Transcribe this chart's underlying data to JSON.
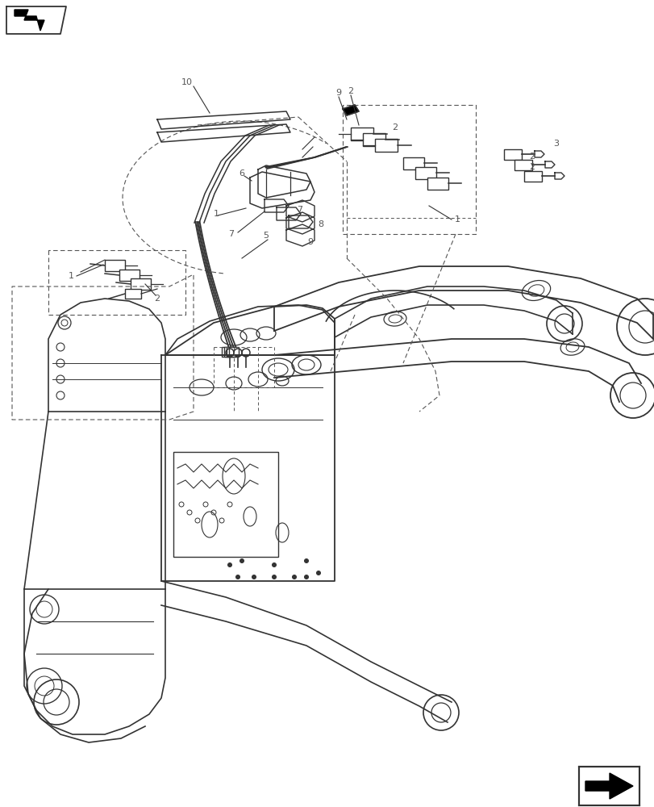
{
  "bg_color": "#ffffff",
  "line_color": "#333333",
  "dashed_color": "#555555",
  "label_color": "#555555",
  "fig_width": 8.12,
  "fig_height": 10.0,
  "dpi": 100
}
